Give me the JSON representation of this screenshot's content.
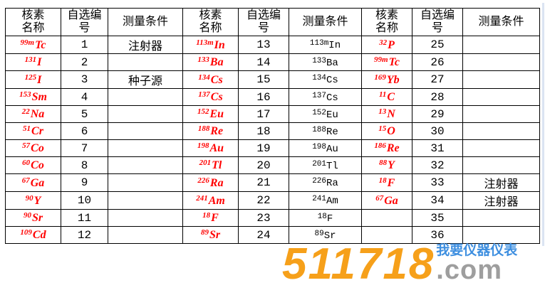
{
  "table": {
    "nuclide_color": "#ff0000",
    "header": {
      "name": "核素\n名称",
      "number": "自选编\n号",
      "condition": "测量条件"
    },
    "groups": [
      {
        "rows": [
          {
            "mass": "99m",
            "symbol": "Tc",
            "number": "1",
            "condition_text": "注射器"
          },
          {
            "mass": "131",
            "symbol": "I",
            "number": "2"
          },
          {
            "mass": "125",
            "symbol": "I",
            "number": "3",
            "condition_text": "种子源"
          },
          {
            "mass": "153",
            "symbol": "Sm",
            "number": "4"
          },
          {
            "mass": "22",
            "symbol": "Na",
            "number": "5"
          },
          {
            "mass": "51",
            "symbol": "Cr",
            "number": "6"
          },
          {
            "mass": "57",
            "symbol": "Co",
            "number": "7"
          },
          {
            "mass": "60",
            "symbol": "Co",
            "number": "8"
          },
          {
            "mass": "67",
            "symbol": "Ga",
            "number": "9"
          },
          {
            "mass": "90",
            "symbol": "Y",
            "number": "10"
          },
          {
            "mass": "90",
            "symbol": "Sr",
            "number": "11"
          },
          {
            "mass": "109",
            "symbol": "Cd",
            "number": "12"
          }
        ]
      },
      {
        "rows": [
          {
            "mass": "113m",
            "symbol": "In",
            "number": "13",
            "condition_isotope": {
              "mass": "113m",
              "symbol": "In"
            }
          },
          {
            "mass": "133",
            "symbol": "Ba",
            "number": "14",
            "condition_isotope": {
              "mass": "133",
              "symbol": "Ba"
            }
          },
          {
            "mass": "134",
            "symbol": "Cs",
            "number": "15",
            "condition_isotope": {
              "mass": "134",
              "symbol": "Cs"
            }
          },
          {
            "mass": "137",
            "symbol": "Cs",
            "number": "16",
            "condition_isotope": {
              "mass": "137",
              "symbol": "Cs"
            }
          },
          {
            "mass": "152",
            "symbol": "Eu",
            "number": "17",
            "condition_isotope": {
              "mass": "152",
              "symbol": "Eu"
            }
          },
          {
            "mass": "188",
            "symbol": "Re",
            "number": "18",
            "condition_isotope": {
              "mass": "188",
              "symbol": "Re"
            }
          },
          {
            "mass": "198",
            "symbol": "Au",
            "number": "19",
            "condition_isotope": {
              "mass": "198",
              "symbol": "Au"
            }
          },
          {
            "mass": "201",
            "symbol": "Tl",
            "number": "20",
            "condition_isotope": {
              "mass": "201",
              "symbol": "Tl"
            }
          },
          {
            "mass": "226",
            "symbol": "Ra",
            "number": "21",
            "condition_isotope": {
              "mass": "226",
              "symbol": "Ra"
            }
          },
          {
            "mass": "241",
            "symbol": "Am",
            "number": "22",
            "condition_isotope": {
              "mass": "241",
              "symbol": "Am"
            }
          },
          {
            "mass": "18",
            "symbol": "F",
            "number": "23",
            "condition_isotope": {
              "mass": "18",
              "symbol": "F"
            }
          },
          {
            "mass": "89",
            "symbol": "Sr",
            "number": "24",
            "condition_isotope": {
              "mass": "89",
              "symbol": "Sr"
            }
          }
        ]
      },
      {
        "rows": [
          {
            "mass": "32",
            "symbol": "P",
            "number": "25"
          },
          {
            "mass": "99m",
            "symbol": "Tc",
            "number": "26"
          },
          {
            "mass": "169",
            "symbol": "Yb",
            "number": "27"
          },
          {
            "mass": "11",
            "symbol": "C",
            "number": "28"
          },
          {
            "mass": "13",
            "symbol": "N",
            "number": "29"
          },
          {
            "mass": "15",
            "symbol": "O",
            "number": "30"
          },
          {
            "mass": "186",
            "symbol": "Re",
            "number": "31"
          },
          {
            "mass": "88",
            "symbol": "Y",
            "number": "32"
          },
          {
            "mass": "18",
            "symbol": "F",
            "number": "33",
            "condition_text": "注射器"
          },
          {
            "mass": "67",
            "symbol": "Ga",
            "number": "34",
            "condition_text": "注射器"
          },
          {
            "number": "35"
          },
          {
            "number": "36"
          }
        ]
      }
    ]
  },
  "logo": {
    "number": "511718",
    "dot_com": ".com",
    "tagline": "我要仪器仪表",
    "colors": {
      "number": "#f6a01a",
      "com": "#9e9e9e",
      "tagline": "#3e8fe0"
    }
  }
}
